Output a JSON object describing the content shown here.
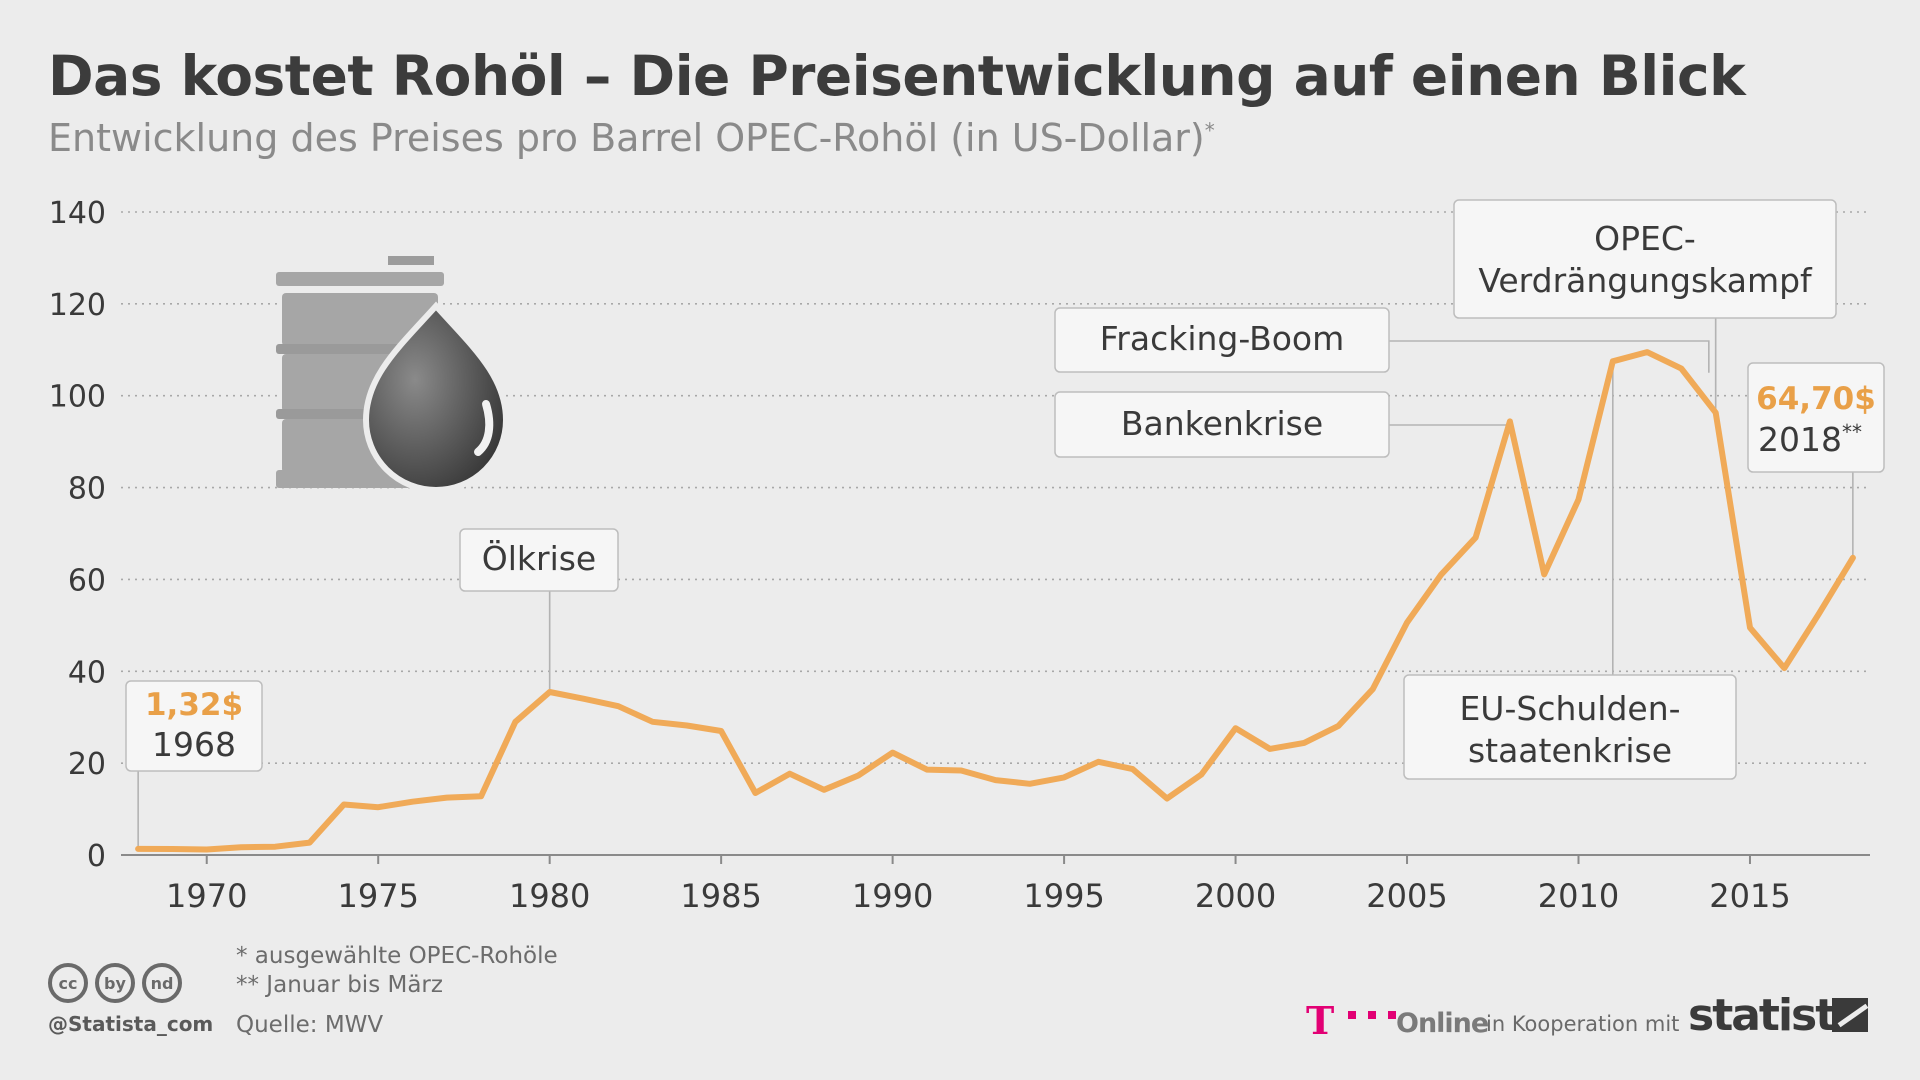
{
  "header": {
    "title": "Das kostet Rohöl – Die Preisentwicklung auf einen Blick",
    "subtitle": "Entwicklung des Preises pro Barrel OPEC-Rohöl (in US-Dollar)",
    "subtitle_mark": "*"
  },
  "chart_data": {
    "type": "line",
    "title": "Das kostet Rohöl – Die Preisentwicklung auf einen Blick",
    "subtitle": "Entwicklung des Preises pro Barrel OPEC-Rohöl (in US-Dollar)*",
    "xlabel": "",
    "ylabel": "",
    "xlim": [
      1967.5,
      2018.5
    ],
    "ylim": [
      0,
      140
    ],
    "grid": true,
    "y_ticks": [
      0,
      20,
      40,
      60,
      80,
      100,
      120,
      140
    ],
    "x_ticks": [
      1970,
      1975,
      1980,
      1985,
      1990,
      1995,
      2000,
      2005,
      2010,
      2015
    ],
    "series": [
      {
        "name": "OPEC-Rohöl",
        "color": "#f0aa58",
        "x": [
          1968,
          1969,
          1970,
          1971,
          1972,
          1973,
          1974,
          1975,
          1976,
          1977,
          1978,
          1979,
          1980,
          1981,
          1982,
          1983,
          1984,
          1985,
          1986,
          1987,
          1988,
          1989,
          1990,
          1991,
          1992,
          1993,
          1994,
          1995,
          1996,
          1997,
          1998,
          1999,
          2000,
          2001,
          2002,
          2003,
          2004,
          2005,
          2006,
          2007,
          2008,
          2009,
          2010,
          2011,
          2012,
          2013,
          2014,
          2015,
          2016,
          2017,
          2018
        ],
        "values": [
          1.32,
          1.3,
          1.2,
          1.7,
          1.8,
          2.7,
          11,
          10.4,
          11.6,
          12.5,
          12.8,
          29,
          35.5,
          34,
          32.4,
          29,
          28.2,
          27,
          13.5,
          17.7,
          14.2,
          17.3,
          22.3,
          18.6,
          18.4,
          16.3,
          15.5,
          16.9,
          20.3,
          18.7,
          12.3,
          17.5,
          27.6,
          23.1,
          24.4,
          28.1,
          36.1,
          50.6,
          61.1,
          69.1,
          94.4,
          61.1,
          77.4,
          107.5,
          109.5,
          105.9,
          96.3,
          49.5,
          40.7,
          52.4,
          64.7
        ]
      }
    ],
    "annotations": [
      {
        "id": "start",
        "value": "1,32$",
        "label": "1968",
        "x": 1968,
        "y": 1.32
      },
      {
        "id": "oelkrise",
        "label": "Ölkrise",
        "x": 1980,
        "y": 35.5
      },
      {
        "id": "bankenkrise",
        "label": "Bankenkrise",
        "x": 2008,
        "y": 94.4
      },
      {
        "id": "fracking",
        "label": "Fracking-Boom",
        "x": 2013.8,
        "y": 110
      },
      {
        "id": "opec1",
        "label": "OPEC-",
        "x": 2014,
        "y": 96.3
      },
      {
        "id": "opec2",
        "label": "Verdrängungskampf",
        "x": 2014,
        "y": 96.3
      },
      {
        "id": "eu1",
        "label": "EU-Schulden-",
        "x": 2011,
        "y": 107.5
      },
      {
        "id": "eu2",
        "label": "staatenkrise",
        "x": 2011,
        "y": 107.5
      },
      {
        "id": "end",
        "value": "64,70$",
        "label": "2018",
        "label_mark": "**",
        "x": 2018,
        "y": 64.7
      }
    ]
  },
  "footer": {
    "note1": "*   ausgewählte OPEC-Rohöle",
    "note2": "** Januar bis März",
    "source": "Quelle: MWV",
    "handle": "@Statista_com",
    "cc_badges": [
      "cc",
      "by",
      "nd"
    ],
    "partner_logo": "T",
    "partner_name": "Online",
    "cooperation": "in Kooperation mit",
    "brand": "statista"
  }
}
